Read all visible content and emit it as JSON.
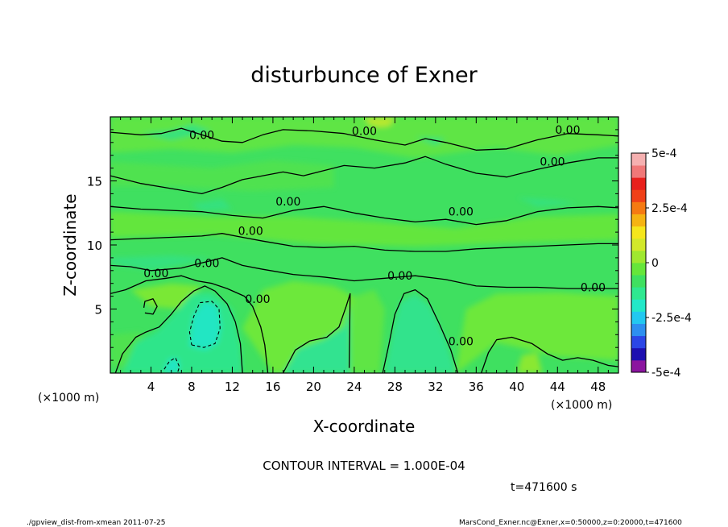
{
  "chart_data": {
    "type": "heatmap",
    "title": "disturbunce of Exner",
    "xlabel": "X-coordinate",
    "ylabel": "Z-coordinate",
    "x_unit": "(×1000 m)",
    "xlim": [
      0,
      50
    ],
    "ylim": [
      0,
      20
    ],
    "x_ticks": [
      4,
      8,
      12,
      16,
      20,
      24,
      28,
      32,
      36,
      40,
      44,
      48
    ],
    "y_ticks": [
      5,
      10,
      15
    ],
    "colorbar": {
      "range": [
        -0.0005,
        0.0005
      ],
      "tick_values": [
        0.0005,
        0.00025,
        0,
        -0.00025,
        -0.0005
      ],
      "tick_labels": [
        "5e-4",
        "2.5e-4",
        "0",
        "-2.5e-4",
        "-5e-4"
      ],
      "colors": [
        "#8b159f",
        "#1d0fb0",
        "#2b46e6",
        "#2d8ff0",
        "#22c8f0",
        "#22e8c8",
        "#2fe890",
        "#3fe060",
        "#66e63a",
        "#9fe82f",
        "#d2e82a",
        "#f5e61c",
        "#f5b312",
        "#f57a12",
        "#f04018",
        "#e8201c",
        "#f07878",
        "#f5b0b0"
      ]
    },
    "contour_interval": "CONTOUR INTERVAL = 1.000E-04",
    "contour_labels": [
      {
        "text": "0.00",
        "x": 9.0,
        "z": 18.6
      },
      {
        "text": "0.00",
        "x": 25.0,
        "z": 18.9
      },
      {
        "text": "0.00",
        "x": 45.0,
        "z": 19.0
      },
      {
        "text": "0.00",
        "x": 43.5,
        "z": 16.5
      },
      {
        "text": "0.00",
        "x": 17.5,
        "z": 13.4
      },
      {
        "text": "0.00",
        "x": 34.5,
        "z": 12.6
      },
      {
        "text": "0.00",
        "x": 13.8,
        "z": 11.1
      },
      {
        "text": "0.00",
        "x": 9.5,
        "z": 8.6
      },
      {
        "text": "0.00",
        "x": 4.5,
        "z": 7.8
      },
      {
        "text": "0.00",
        "x": 28.5,
        "z": 7.6
      },
      {
        "text": "0.00",
        "x": 47.5,
        "z": 6.7
      },
      {
        "text": "0.00",
        "x": 14.5,
        "z": 5.8
      },
      {
        "text": "0.00",
        "x": 34.5,
        "z": 2.5
      }
    ],
    "contours": {
      "zero_solid": [
        [
          [
            0,
            18.8
          ],
          [
            3,
            18.6
          ],
          [
            5,
            18.7
          ],
          [
            7,
            19.1
          ],
          [
            9,
            18.6
          ],
          [
            11,
            18.1
          ],
          [
            13,
            18.0
          ],
          [
            15,
            18.6
          ],
          [
            17,
            19.0
          ],
          [
            20,
            18.9
          ],
          [
            23,
            18.7
          ],
          [
            26,
            18.2
          ],
          [
            29,
            17.8
          ],
          [
            31,
            18.3
          ],
          [
            33,
            18.0
          ],
          [
            36,
            17.4
          ],
          [
            39,
            17.5
          ],
          [
            42,
            18.2
          ],
          [
            45,
            18.7
          ],
          [
            48,
            18.6
          ],
          [
            50,
            18.5
          ]
        ],
        [
          [
            0,
            15.4
          ],
          [
            3,
            14.8
          ],
          [
            6,
            14.4
          ],
          [
            9,
            14.0
          ],
          [
            11,
            14.5
          ],
          [
            13,
            15.1
          ],
          [
            15,
            15.4
          ],
          [
            17,
            15.7
          ],
          [
            19,
            15.4
          ],
          [
            21,
            15.8
          ],
          [
            23,
            16.2
          ],
          [
            26,
            16.0
          ],
          [
            29,
            16.4
          ],
          [
            31,
            16.9
          ],
          [
            33,
            16.3
          ],
          [
            36,
            15.6
          ],
          [
            39,
            15.3
          ],
          [
            42,
            15.9
          ],
          [
            45,
            16.4
          ],
          [
            48,
            16.8
          ],
          [
            50,
            16.8
          ]
        ],
        [
          [
            0,
            13.0
          ],
          [
            3,
            12.8
          ],
          [
            6,
            12.7
          ],
          [
            9,
            12.6
          ],
          [
            12,
            12.3
          ],
          [
            15,
            12.1
          ],
          [
            18,
            12.7
          ],
          [
            21,
            13.0
          ],
          [
            24,
            12.5
          ],
          [
            27,
            12.1
          ],
          [
            30,
            11.8
          ],
          [
            33,
            12.0
          ],
          [
            36,
            11.6
          ],
          [
            39,
            11.9
          ],
          [
            42,
            12.6
          ],
          [
            45,
            12.9
          ],
          [
            48,
            13.0
          ],
          [
            50,
            12.9
          ]
        ],
        [
          [
            0,
            10.4
          ],
          [
            3,
            10.5
          ],
          [
            6,
            10.6
          ],
          [
            9,
            10.7
          ],
          [
            11,
            10.9
          ],
          [
            13,
            10.6
          ],
          [
            15,
            10.3
          ],
          [
            18,
            9.9
          ],
          [
            21,
            9.8
          ],
          [
            24,
            9.9
          ],
          [
            27,
            9.6
          ],
          [
            30,
            9.5
          ],
          [
            33,
            9.5
          ],
          [
            36,
            9.7
          ],
          [
            39,
            9.8
          ],
          [
            42,
            9.9
          ],
          [
            45,
            10.0
          ],
          [
            48,
            10.1
          ],
          [
            50,
            10.1
          ]
        ],
        [
          [
            0,
            8.4
          ],
          [
            2,
            8.3
          ],
          [
            4,
            8.0
          ],
          [
            7,
            8.2
          ],
          [
            9,
            8.6
          ],
          [
            11,
            9.0
          ],
          [
            13,
            8.4
          ],
          [
            15,
            8.1
          ],
          [
            18,
            7.7
          ],
          [
            21,
            7.5
          ],
          [
            24,
            7.2
          ],
          [
            27,
            7.4
          ],
          [
            30,
            7.6
          ],
          [
            33,
            7.3
          ],
          [
            36,
            6.8
          ],
          [
            39,
            6.7
          ],
          [
            42,
            6.7
          ],
          [
            45,
            6.6
          ],
          [
            48,
            6.6
          ],
          [
            50,
            6.6
          ]
        ],
        [
          [
            0.5,
            0
          ],
          [
            1.2,
            1.5
          ],
          [
            2.5,
            2.8
          ],
          [
            3.5,
            3.2
          ],
          [
            4.8,
            3.6
          ],
          [
            6,
            4.6
          ],
          [
            7,
            5.6
          ],
          [
            8.2,
            6.4
          ],
          [
            9.3,
            6.8
          ],
          [
            10.3,
            6.4
          ],
          [
            11.5,
            5.4
          ],
          [
            12.3,
            4.0
          ],
          [
            12.8,
            2.3
          ],
          [
            13.0,
            0
          ]
        ],
        [
          [
            15.5,
            0
          ],
          [
            15.2,
            2.2
          ],
          [
            14.8,
            3.6
          ],
          [
            14.0,
            5.2
          ],
          [
            13.2,
            6.0
          ],
          [
            11.5,
            6.6
          ],
          [
            10.0,
            7.0
          ],
          [
            8.5,
            7.2
          ],
          [
            7.0,
            7.6
          ],
          [
            5.5,
            7.4
          ],
          [
            3.5,
            7.2
          ],
          [
            1.5,
            6.5
          ],
          [
            0,
            6.2
          ]
        ],
        [
          [
            17.0,
            0
          ],
          [
            18.2,
            1.8
          ],
          [
            19.6,
            2.5
          ],
          [
            21.3,
            2.8
          ],
          [
            22.5,
            3.6
          ],
          [
            23.2,
            5.2
          ],
          [
            23.6,
            6.2
          ],
          [
            23.5,
            0.4
          ]
        ],
        [
          [
            26.8,
            0
          ],
          [
            27.4,
            2.2
          ],
          [
            28.0,
            4.6
          ],
          [
            28.9,
            6.2
          ],
          [
            30.0,
            6.5
          ],
          [
            31.2,
            5.8
          ],
          [
            32.4,
            3.8
          ],
          [
            33.5,
            1.8
          ],
          [
            34.2,
            0
          ]
        ],
        [
          [
            36.5,
            0
          ],
          [
            37.2,
            1.6
          ],
          [
            38.0,
            2.6
          ],
          [
            39.5,
            2.8
          ],
          [
            41.5,
            2.3
          ],
          [
            43.0,
            1.5
          ],
          [
            44.5,
            1.0
          ],
          [
            46.0,
            1.2
          ],
          [
            47.5,
            1.0
          ],
          [
            49.0,
            0.6
          ],
          [
            50,
            0.5
          ]
        ],
        [
          [
            3.4,
            4.7
          ],
          [
            4.2,
            4.6
          ],
          [
            4.6,
            5.2
          ],
          [
            4.2,
            5.8
          ],
          [
            3.4,
            5.6
          ],
          [
            3.3,
            5.1
          ]
        ]
      ],
      "negative_dashed": [
        [
          [
            8.0,
            2.2
          ],
          [
            9.2,
            2.0
          ],
          [
            10.3,
            2.3
          ],
          [
            10.8,
            3.5
          ],
          [
            10.7,
            5.0
          ],
          [
            10.0,
            5.6
          ],
          [
            8.8,
            5.5
          ],
          [
            8.2,
            4.4
          ],
          [
            7.8,
            3.2
          ],
          [
            8.0,
            2.2
          ]
        ],
        [
          [
            5.3,
            0.3
          ],
          [
            5.8,
            0.9
          ],
          [
            6.4,
            1.2
          ],
          [
            6.8,
            0.5
          ],
          [
            6.6,
            0
          ]
        ]
      ]
    }
  },
  "annotations": {
    "x_unit_left": "(×1000 m)",
    "x_unit_right": "(×1000 m)",
    "time": "t=471600 s",
    "footer_left": "./gpview_dist-from-xmean  2011-07-25",
    "footer_right": "MarsCond_Exner.nc@Exner,x=0:50000,z=0:20000,t=471600"
  }
}
